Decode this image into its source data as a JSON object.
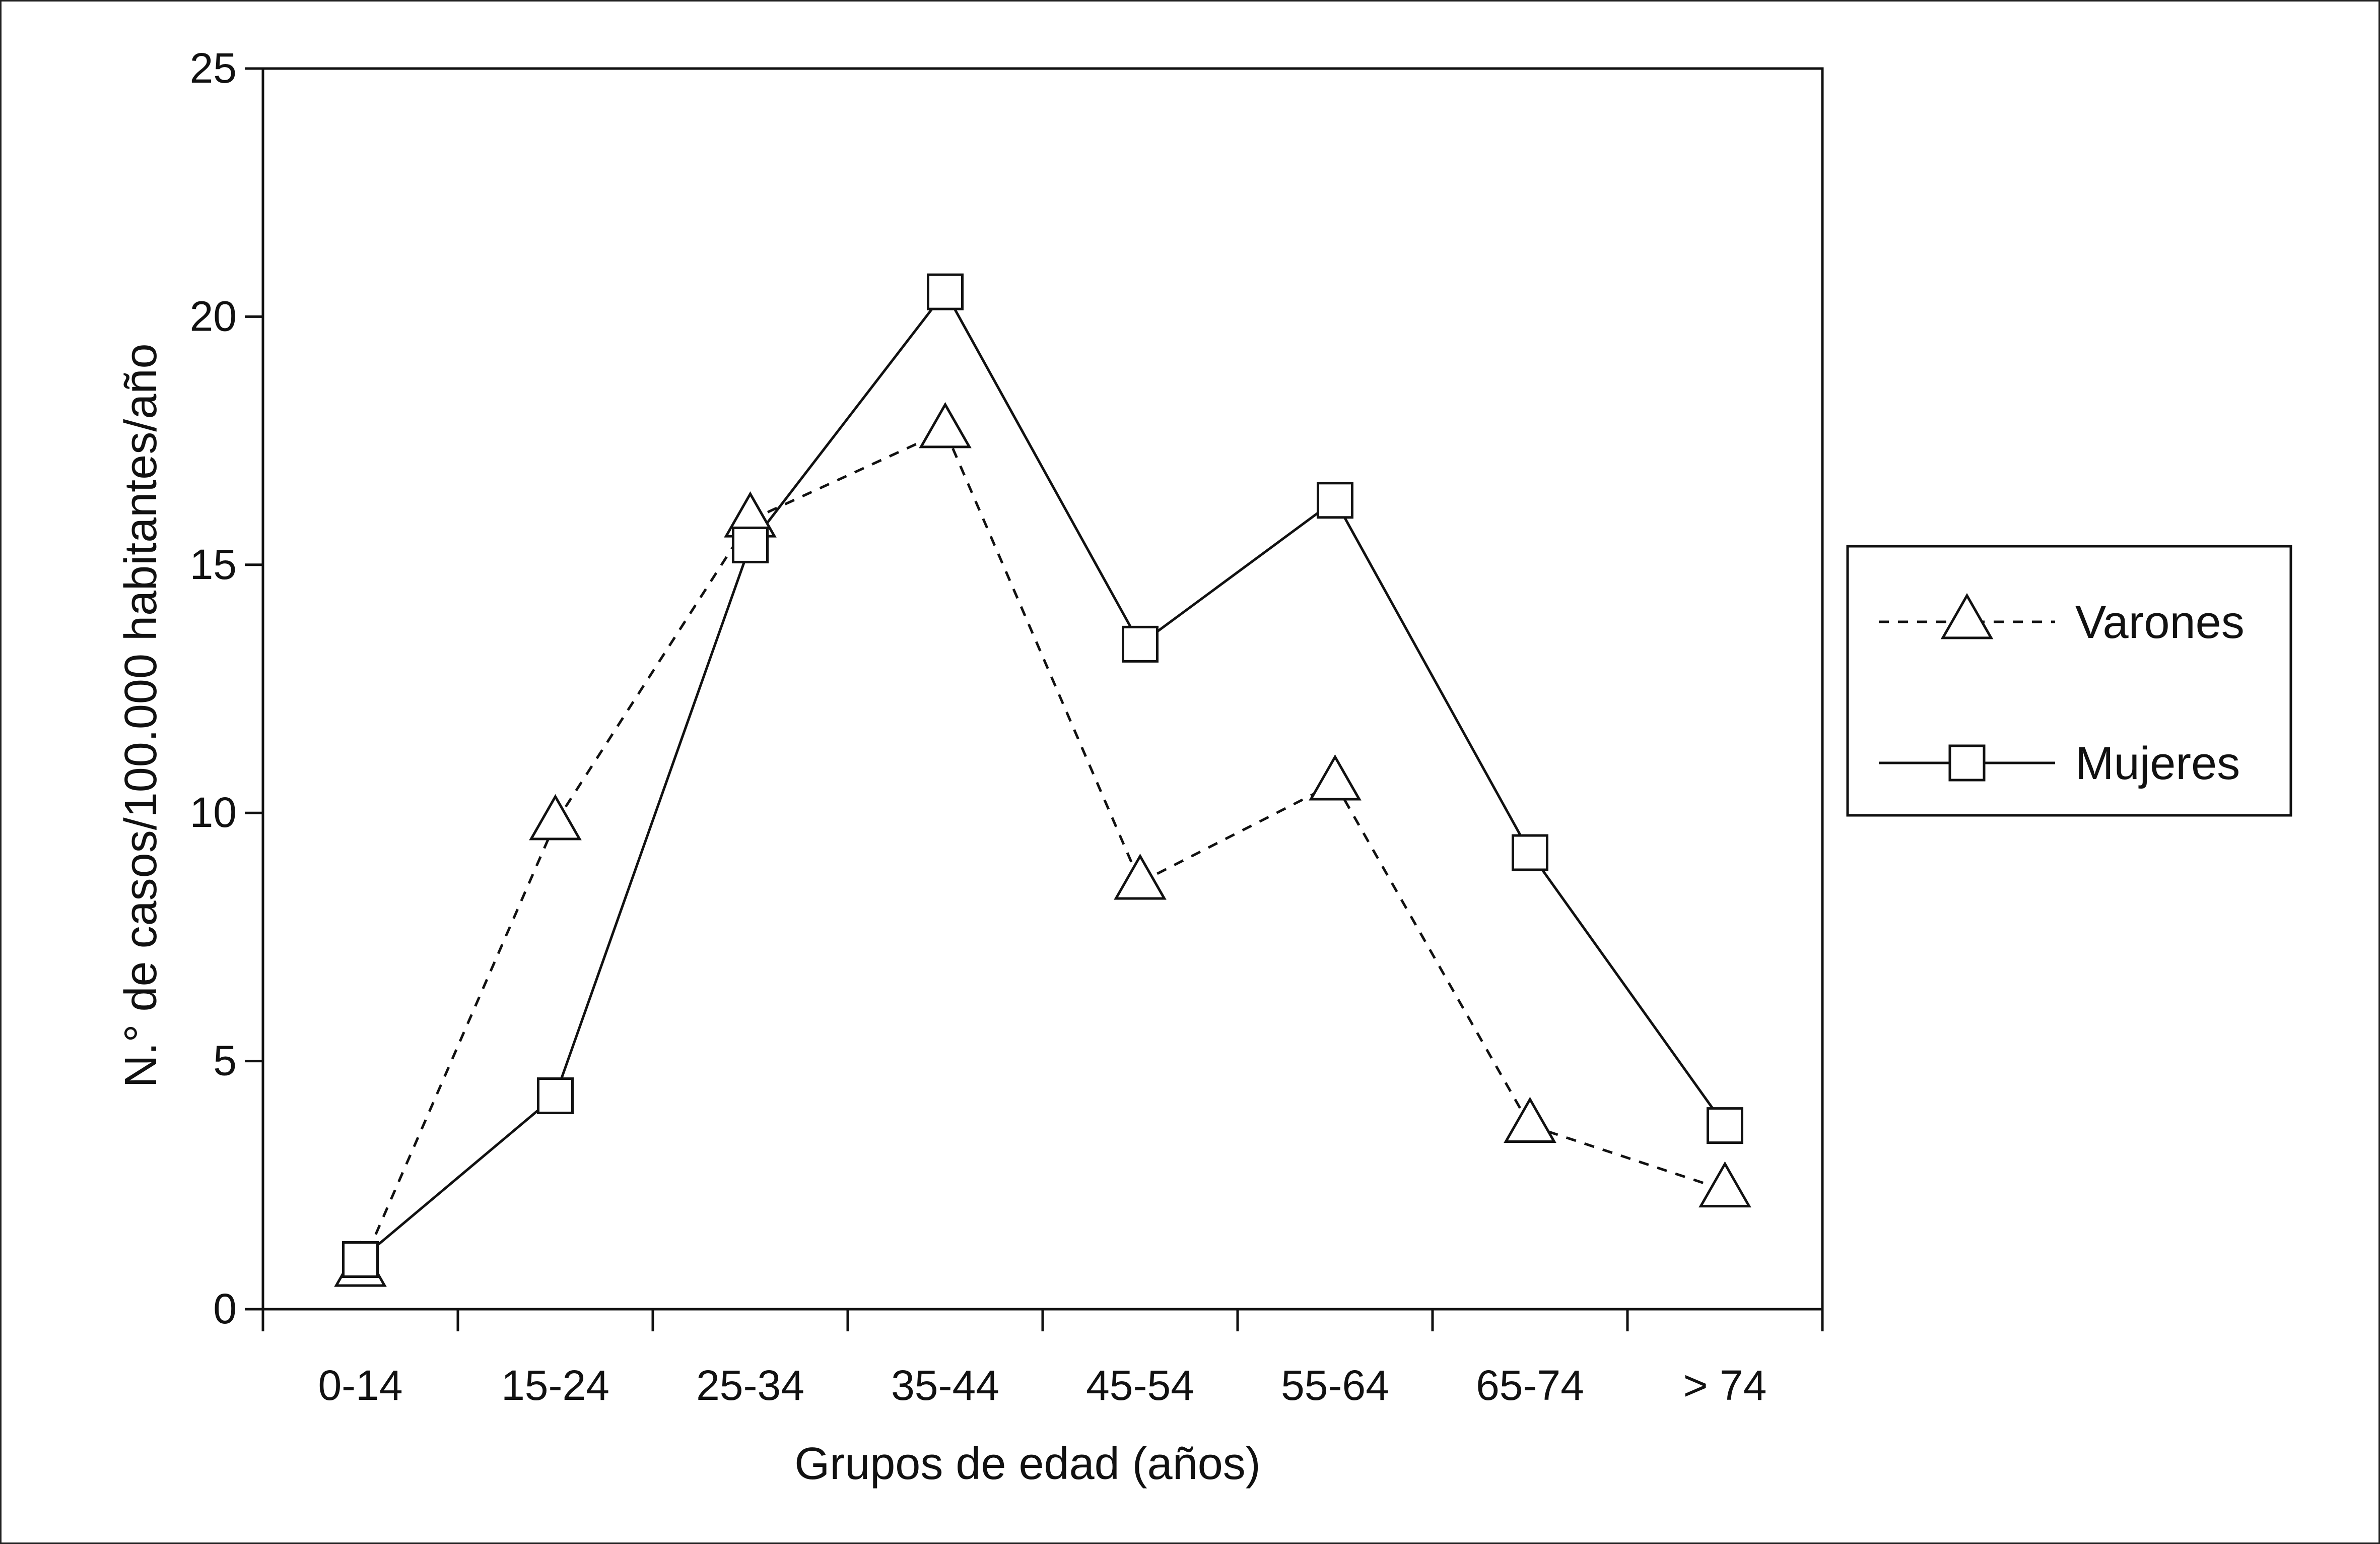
{
  "chart_data": {
    "type": "line",
    "categories": [
      "0-14",
      "15-24",
      "25-34",
      "35-44",
      "45-54",
      "55-64",
      "65-74",
      "> 74"
    ],
    "xlabel": "Grupos de edad (años)",
    "ylabel": "N.° de casos/100.000 habitantes/año",
    "ylim": [
      0,
      25
    ],
    "yticks": [
      0,
      5,
      10,
      15,
      20,
      25
    ],
    "grid": false,
    "legend_position": "right",
    "series": [
      {
        "name": "Varones",
        "marker": "triangle",
        "line_style": "dashed",
        "values": [
          0.8,
          9.8,
          15.9,
          17.7,
          8.6,
          10.6,
          3.7,
          2.4
        ]
      },
      {
        "name": "Mujeres",
        "marker": "square",
        "line_style": "solid",
        "values": [
          1.0,
          4.3,
          15.4,
          20.5,
          13.4,
          16.3,
          9.2,
          3.7
        ]
      }
    ]
  }
}
